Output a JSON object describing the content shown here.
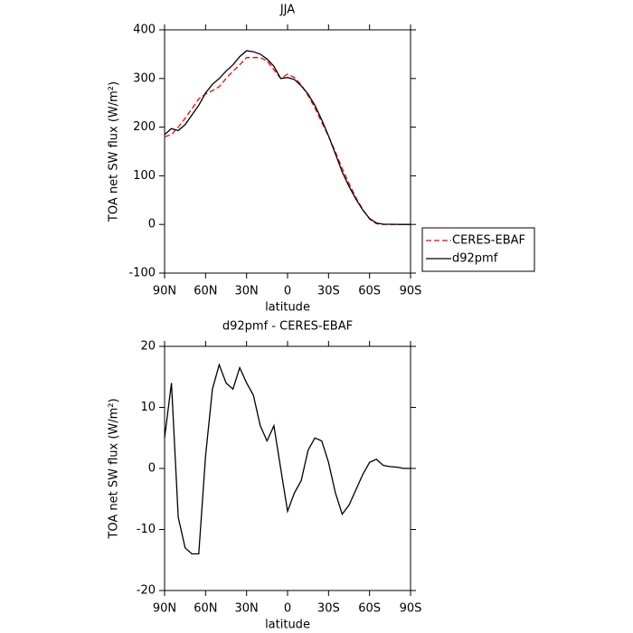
{
  "chart_data": [
    {
      "type": "line",
      "title": "JJA",
      "xlabel": "latitude",
      "ylabel": "TOA net SW flux (W/m²)",
      "x": [
        90,
        85,
        80,
        75,
        70,
        65,
        60,
        55,
        50,
        45,
        40,
        35,
        30,
        25,
        20,
        15,
        10,
        5,
        0,
        -5,
        -10,
        -15,
        -20,
        -25,
        -30,
        -35,
        -40,
        -45,
        -50,
        -55,
        -60,
        -65,
        -70,
        -75,
        -80,
        -85,
        -90
      ],
      "xlim": [
        90,
        -90
      ],
      "xticks": [
        {
          "value": 90,
          "label": "90N"
        },
        {
          "value": 60,
          "label": "60N"
        },
        {
          "value": 30,
          "label": "30N"
        },
        0,
        {
          "value": -30,
          "label": "30S"
        },
        {
          "value": -60,
          "label": "60S"
        },
        {
          "value": -90,
          "label": "90S"
        }
      ],
      "ylim": [
        -100,
        400
      ],
      "yticks": [
        -100,
        0,
        100,
        200,
        300,
        400
      ],
      "legend": "right",
      "series": [
        {
          "name": "CERES-EBAF",
          "color": "#ff0000",
          "linestyle": "dashed",
          "values": [
            180,
            185,
            200,
            218,
            238,
            258,
            268,
            275,
            283,
            300,
            315,
            328,
            343,
            343,
            343,
            336,
            318,
            300,
            309,
            302,
            287,
            265,
            240,
            210,
            181,
            149,
            115,
            84,
            55,
            31,
            11,
            1.5,
            0,
            0,
            0,
            0,
            0
          ]
        },
        {
          "name": "d92pmf",
          "color": "#000000",
          "linestyle": "solid",
          "values": [
            185,
            197,
            193,
            205,
            225,
            245,
            270,
            288,
            300,
            315,
            328,
            345,
            357,
            355,
            350,
            340,
            325,
            300,
            302,
            298,
            285,
            268,
            245,
            215,
            182,
            145,
            108,
            78,
            52,
            30,
            12,
            3,
            0.5,
            0.3,
            0.2,
            0,
            0
          ]
        }
      ]
    },
    {
      "type": "line",
      "title": "d92pmf - CERES-EBAF",
      "xlabel": "latitude",
      "ylabel": "TOA net SW flux (W/m²)",
      "x": [
        90,
        85,
        80,
        75,
        70,
        65,
        60,
        55,
        50,
        45,
        40,
        35,
        30,
        25,
        20,
        15,
        10,
        5,
        0,
        -5,
        -10,
        -15,
        -20,
        -25,
        -30,
        -35,
        -40,
        -45,
        -50,
        -55,
        -60,
        -65,
        -70,
        -75,
        -80,
        -85,
        -90
      ],
      "xlim": [
        90,
        -90
      ],
      "xticks": [
        {
          "value": 90,
          "label": "90N"
        },
        {
          "value": 60,
          "label": "60N"
        },
        {
          "value": 30,
          "label": "30N"
        },
        0,
        {
          "value": -30,
          "label": "30S"
        },
        {
          "value": -60,
          "label": "60S"
        },
        {
          "value": -90,
          "label": "90S"
        }
      ],
      "ylim": [
        -20,
        20
      ],
      "yticks": [
        -20,
        -10,
        0,
        10,
        20
      ],
      "series": [
        {
          "color": "#000000",
          "linestyle": "solid",
          "values": [
            5,
            14,
            -8,
            -13,
            -14,
            -14,
            2,
            13,
            17,
            14,
            13,
            16.5,
            14,
            12,
            7,
            4.5,
            7,
            0,
            -7,
            -4,
            -2,
            3,
            5,
            4.5,
            1,
            -4,
            -7.5,
            -6,
            -3.5,
            -1,
            1,
            1.5,
            0.5,
            0.3,
            0.2,
            0,
            0
          ]
        }
      ]
    }
  ]
}
